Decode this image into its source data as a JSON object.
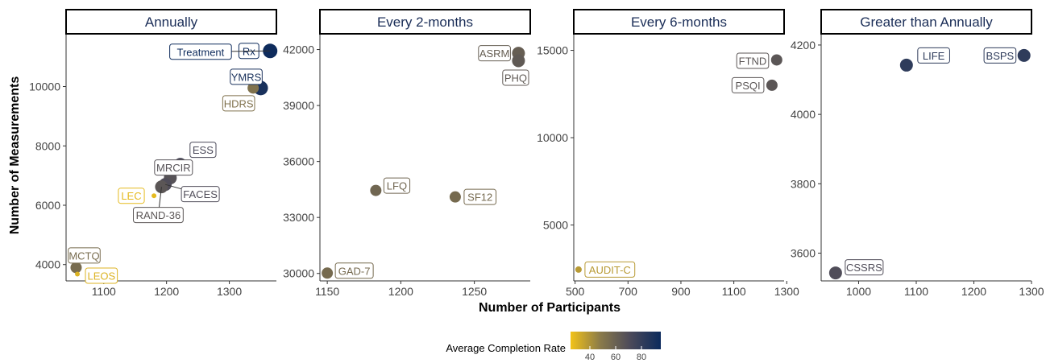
{
  "chart_data": {
    "type": "scatter",
    "xlabel": "Number of Participants",
    "ylabel": "Number of Measurements",
    "legend": {
      "title": "Average Completion Rate",
      "position": "bottom",
      "range": [
        25,
        95
      ],
      "ticks": [
        40,
        60,
        80
      ],
      "colors": [
        "#f2c318",
        "#8a7a4a",
        "#4c4a5a",
        "#0b2a5c"
      ]
    },
    "panels": [
      {
        "title": "Annually",
        "xlim": [
          1040,
          1375
        ],
        "ylim": [
          3450,
          11750
        ],
        "xticks": [
          1100,
          1200,
          1300
        ],
        "yticks": [
          4000,
          6000,
          8000,
          10000
        ],
        "points": [
          {
            "label": "Rx",
            "x": 1365,
            "y": 11200,
            "rate": 94,
            "size": 9
          },
          {
            "label": "Treatment",
            "x": 1365,
            "y": 11200,
            "rate": 94,
            "size": 0
          },
          {
            "label": "YMRS",
            "x": 1350,
            "y": 9950,
            "rate": 90,
            "size": 9
          },
          {
            "label": "HDRS",
            "x": 1338,
            "y": 9950,
            "rate": 52,
            "size": 7
          },
          {
            "label": "ESS",
            "x": 1222,
            "y": 7380,
            "rate": 72,
            "size": 8
          },
          {
            "label": "MRCIR",
            "x": 1206,
            "y": 6920,
            "rate": 68,
            "size": 8
          },
          {
            "label": "FACES",
            "x": 1198,
            "y": 6700,
            "rate": 70,
            "size": 8
          },
          {
            "label": "RAND-36",
            "x": 1192,
            "y": 6620,
            "rate": 66,
            "size": 8
          },
          {
            "label": "LEC",
            "x": 1180,
            "y": 6320,
            "rate": 28,
            "size": 3
          },
          {
            "label": "MCTQ",
            "x": 1056,
            "y": 3900,
            "rate": 55,
            "size": 7
          },
          {
            "label": "LEOS",
            "x": 1058,
            "y": 3680,
            "rate": 30,
            "size": 3
          }
        ]
      },
      {
        "title": "Every 2-months",
        "xlim": [
          1145,
          1288
        ],
        "ylim": [
          29600,
          42800
        ],
        "xticks": [
          1150,
          1200,
          1250
        ],
        "yticks": [
          30000,
          33000,
          36000,
          39000,
          42000
        ],
        "points": [
          {
            "label": "ASRM",
            "x": 1280,
            "y": 41800,
            "rate": 62,
            "size": 8
          },
          {
            "label": "PHQ",
            "x": 1280,
            "y": 41400,
            "rate": 64,
            "size": 8
          },
          {
            "label": "LFQ",
            "x": 1183,
            "y": 34450,
            "rate": 58,
            "size": 7
          },
          {
            "label": "SF12",
            "x": 1237,
            "y": 34100,
            "rate": 56,
            "size": 7
          },
          {
            "label": "GAD-7",
            "x": 1150,
            "y": 30020,
            "rate": 56,
            "size": 7
          }
        ]
      },
      {
        "title": "Every 6-months",
        "xlim": [
          495,
          1290
        ],
        "ylim": [
          1800,
          15900
        ],
        "xticks": [
          500,
          700,
          900,
          1100,
          1300
        ],
        "yticks": [
          5000,
          10000,
          15000
        ],
        "xticklabels": [
          "500",
          "700",
          "900",
          "1100",
          "1300"
        ],
        "points": [
          {
            "label": "FTND",
            "x": 1262,
            "y": 14450,
            "rate": 66,
            "size": 7
          },
          {
            "label": "PSQI",
            "x": 1244,
            "y": 13000,
            "rate": 66,
            "size": 7
          },
          {
            "label": "AUDIT-C",
            "x": 513,
            "y": 2450,
            "rate": 38,
            "size": 4
          }
        ]
      },
      {
        "title": "Greater than Annually",
        "xlim": [
          935,
          1300
        ],
        "ylim": [
          3520,
          4230
        ],
        "xticks": [
          1000,
          1100,
          1200,
          1300
        ],
        "yticks": [
          3600,
          3800,
          4000,
          4200
        ],
        "points": [
          {
            "label": "LIFE",
            "x": 1083,
            "y": 4142,
            "rate": 82,
            "size": 8
          },
          {
            "label": "BSPS",
            "x": 1287,
            "y": 4170,
            "rate": 82,
            "size": 8
          },
          {
            "label": "CSSRS",
            "x": 960,
            "y": 3543,
            "rate": 70,
            "size": 8
          }
        ]
      }
    ]
  }
}
